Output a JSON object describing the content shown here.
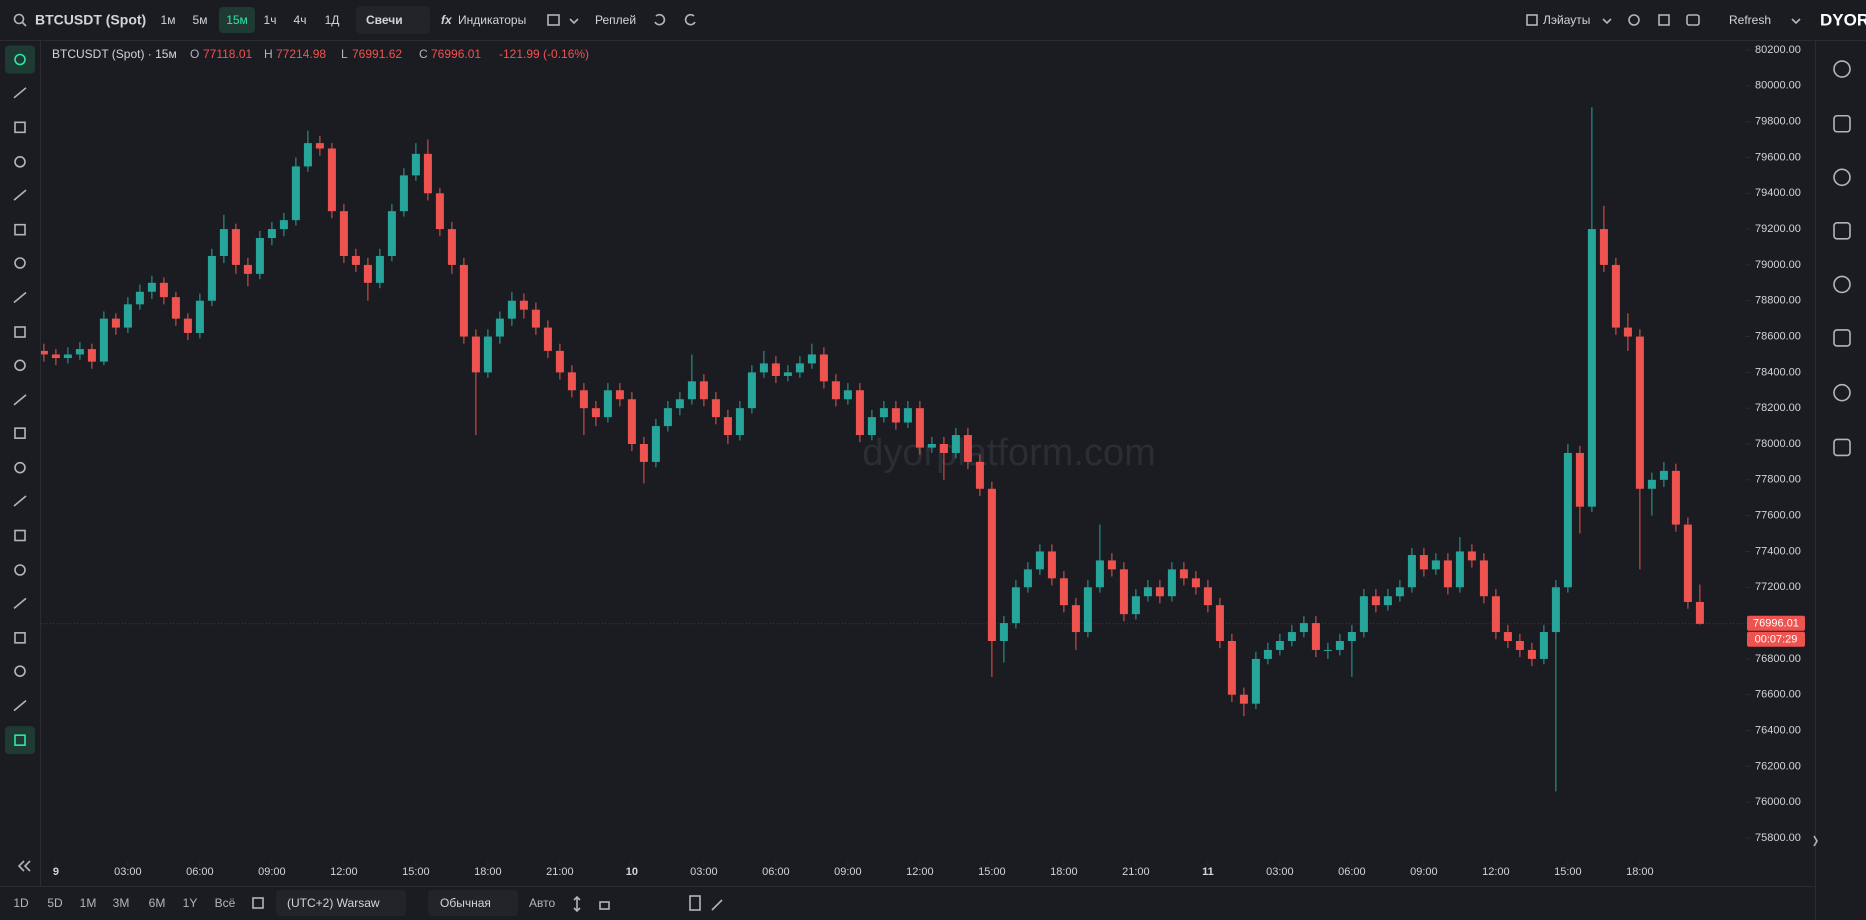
{
  "toolbar": {
    "symbol": "BTCUSDT (Spot)",
    "intervals": [
      "1м",
      "5м",
      "15м",
      "1ч",
      "4ч",
      "1Д"
    ],
    "active_interval": 2,
    "chart_style": "Свечи",
    "indicators": "Индикаторы",
    "replay": "Реплей",
    "layouts": "Лэйауты",
    "refresh": "Refresh",
    "logo": "DYOR"
  },
  "chart_data": {
    "type": "candlestick",
    "title": "BTCUSDT (Spot) · 15м",
    "ohlc_labels": [
      "O",
      "H",
      "L",
      "C"
    ],
    "change_label": "-121.99 (-0.16%)",
    "watermark": "dyorplatform.com",
    "countdown": "00:07:29",
    "up_color": "#26a69a",
    "down_color": "#ef5350",
    "ylim": [
      75800,
      80200
    ],
    "yticks": [
      {
        "value": 75800,
        "label": "75800.00"
      },
      {
        "value": 76000,
        "label": "76000.00"
      },
      {
        "value": 76200,
        "label": "76200.00"
      },
      {
        "value": 76400,
        "label": "76400.00"
      },
      {
        "value": 76600,
        "label": "76600.00"
      },
      {
        "value": 76800,
        "label": "76800.00"
      },
      {
        "value": 77000,
        "label": "77000.00"
      },
      {
        "value": 77200,
        "label": "77200.00"
      },
      {
        "value": 77400,
        "label": "77400.00"
      },
      {
        "value": 77600,
        "label": "77600.00"
      },
      {
        "value": 77800,
        "label": "77800.00"
      },
      {
        "value": 78000,
        "label": "78000.00"
      },
      {
        "value": 78200,
        "label": "78200.00"
      },
      {
        "value": 78400,
        "label": "78400.00"
      },
      {
        "value": 78600,
        "label": "78600.00"
      },
      {
        "value": 78800,
        "label": "78800.00"
      },
      {
        "value": 79000,
        "label": "79000.00"
      },
      {
        "value": 79200,
        "label": "79200.00"
      },
      {
        "value": 79400,
        "label": "79400.00"
      },
      {
        "value": 79600,
        "label": "79600.00"
      },
      {
        "value": 79800,
        "label": "79800.00"
      },
      {
        "value": 80000,
        "label": "80000.00"
      },
      {
        "value": 80200,
        "label": "80200.00"
      }
    ],
    "xticks": [
      {
        "value": 2,
        "label": "9"
      },
      {
        "value": 8,
        "label": "03:00"
      },
      {
        "value": 14,
        "label": "06:00"
      },
      {
        "value": 20,
        "label": "09:00"
      },
      {
        "value": 26,
        "label": "12:00"
      },
      {
        "value": 32,
        "label": "15:00"
      },
      {
        "value": 38,
        "label": "18:00"
      },
      {
        "value": 44,
        "label": "21:00"
      },
      {
        "value": 50,
        "label": "10"
      },
      {
        "value": 56,
        "label": "03:00"
      },
      {
        "value": 62,
        "label": "06:00"
      },
      {
        "value": 68,
        "label": "09:00"
      },
      {
        "value": 74,
        "label": "12:00"
      },
      {
        "value": 80,
        "label": "15:00"
      },
      {
        "value": 86,
        "label": "18:00"
      },
      {
        "value": 92,
        "label": "21:00"
      },
      {
        "value": 98,
        "label": "11"
      },
      {
        "value": 104,
        "label": "03:00"
      },
      {
        "value": 110,
        "label": "06:00"
      },
      {
        "value": 116,
        "label": "09:00"
      },
      {
        "value": 122,
        "label": "12:00"
      },
      {
        "value": 128,
        "label": "15:00"
      },
      {
        "value": 134,
        "label": "18:00"
      }
    ],
    "candles": [
      [
        78500,
        78560,
        78460,
        78520
      ],
      [
        78520,
        78560,
        78460,
        78500
      ],
      [
        78500,
        78530,
        78440,
        78480
      ],
      [
        78480,
        78540,
        78450,
        78500
      ],
      [
        78500,
        78570,
        78470,
        78530
      ],
      [
        78530,
        78560,
        78420,
        78460
      ],
      [
        78460,
        78740,
        78440,
        78700
      ],
      [
        78700,
        78730,
        78610,
        78650
      ],
      [
        78650,
        78820,
        78620,
        78780
      ],
      [
        78780,
        78890,
        78750,
        78850
      ],
      [
        78850,
        78940,
        78810,
        78900
      ],
      [
        78900,
        78930,
        78780,
        78820
      ],
      [
        78820,
        78850,
        78660,
        78700
      ],
      [
        78700,
        78730,
        78580,
        78620
      ],
      [
        78620,
        78840,
        78590,
        78800
      ],
      [
        78800,
        79090,
        78770,
        79050
      ],
      [
        79050,
        79280,
        79010,
        79200
      ],
      [
        79200,
        79230,
        78950,
        79000
      ],
      [
        79000,
        79040,
        78880,
        78950
      ],
      [
        78950,
        79190,
        78920,
        79150
      ],
      [
        79150,
        79240,
        79110,
        79200
      ],
      [
        79200,
        79290,
        79160,
        79250
      ],
      [
        79250,
        79600,
        79220,
        79550
      ],
      [
        79550,
        79750,
        79520,
        79680
      ],
      [
        79680,
        79720,
        79610,
        79650
      ],
      [
        79650,
        79680,
        79260,
        79300
      ],
      [
        79300,
        79340,
        79010,
        79050
      ],
      [
        79050,
        79090,
        78960,
        79000
      ],
      [
        79000,
        79040,
        78800,
        78900
      ],
      [
        78900,
        79090,
        78870,
        79050
      ],
      [
        79050,
        79340,
        79020,
        79300
      ],
      [
        79300,
        79540,
        79270,
        79500
      ],
      [
        79500,
        79680,
        79470,
        79620
      ],
      [
        79620,
        79700,
        79360,
        79400
      ],
      [
        79400,
        79430,
        79160,
        79200
      ],
      [
        79200,
        79240,
        78950,
        79000
      ],
      [
        79000,
        79040,
        78560,
        78600
      ],
      [
        78600,
        78640,
        78050,
        78400
      ],
      [
        78400,
        78640,
        78370,
        78600
      ],
      [
        78600,
        78740,
        78560,
        78700
      ],
      [
        78700,
        78850,
        78660,
        78800
      ],
      [
        78800,
        78840,
        78700,
        78750
      ],
      [
        78750,
        78790,
        78610,
        78650
      ],
      [
        78650,
        78690,
        78480,
        78520
      ],
      [
        78520,
        78560,
        78360,
        78400
      ],
      [
        78400,
        78440,
        78260,
        78300
      ],
      [
        78300,
        78340,
        78050,
        78200
      ],
      [
        78200,
        78240,
        78100,
        78150
      ],
      [
        78150,
        78340,
        78120,
        78300
      ],
      [
        78300,
        78340,
        78210,
        78250
      ],
      [
        78250,
        78290,
        77960,
        78000
      ],
      [
        78000,
        78040,
        77780,
        77900
      ],
      [
        77900,
        78140,
        77870,
        78100
      ],
      [
        78100,
        78240,
        78070,
        78200
      ],
      [
        78200,
        78290,
        78160,
        78250
      ],
      [
        78250,
        78500,
        78220,
        78350
      ],
      [
        78350,
        78390,
        78210,
        78250
      ],
      [
        78250,
        78290,
        78110,
        78150
      ],
      [
        78150,
        78190,
        78000,
        78050
      ],
      [
        78050,
        78240,
        78020,
        78200
      ],
      [
        78200,
        78440,
        78170,
        78400
      ],
      [
        78400,
        78520,
        78370,
        78450
      ],
      [
        78450,
        78490,
        78340,
        78380
      ],
      [
        78380,
        78440,
        78350,
        78400
      ],
      [
        78400,
        78490,
        78370,
        78450
      ],
      [
        78450,
        78560,
        78420,
        78500
      ],
      [
        78500,
        78540,
        78310,
        78350
      ],
      [
        78350,
        78390,
        78210,
        78250
      ],
      [
        78250,
        78340,
        78220,
        78300
      ],
      [
        78300,
        78340,
        78010,
        78050
      ],
      [
        78050,
        78190,
        78020,
        78150
      ],
      [
        78150,
        78240,
        78120,
        78200
      ],
      [
        78200,
        78240,
        78080,
        78120
      ],
      [
        78120,
        78240,
        78090,
        78200
      ],
      [
        78200,
        78240,
        77940,
        77980
      ],
      [
        77980,
        78040,
        77950,
        78000
      ],
      [
        78000,
        78040,
        77800,
        77950
      ],
      [
        77950,
        78090,
        77920,
        78050
      ],
      [
        78050,
        78090,
        77860,
        77900
      ],
      [
        77900,
        77940,
        77710,
        77750
      ],
      [
        77750,
        77790,
        76700,
        76900
      ],
      [
        76900,
        77040,
        76780,
        77000
      ],
      [
        77000,
        77240,
        76970,
        77200
      ],
      [
        77200,
        77340,
        77170,
        77300
      ],
      [
        77300,
        77440,
        77270,
        77400
      ],
      [
        77400,
        77440,
        77210,
        77250
      ],
      [
        77250,
        77290,
        77060,
        77100
      ],
      [
        77100,
        77140,
        76850,
        76950
      ],
      [
        76950,
        77240,
        76920,
        77200
      ],
      [
        77200,
        77550,
        77170,
        77350
      ],
      [
        77350,
        77390,
        77260,
        77300
      ],
      [
        77300,
        77340,
        77010,
        77050
      ],
      [
        77050,
        77190,
        77020,
        77150
      ],
      [
        77150,
        77240,
        77120,
        77200
      ],
      [
        77200,
        77240,
        77110,
        77150
      ],
      [
        77150,
        77340,
        77120,
        77300
      ],
      [
        77300,
        77340,
        77210,
        77250
      ],
      [
        77250,
        77290,
        77160,
        77200
      ],
      [
        77200,
        77240,
        77060,
        77100
      ],
      [
        77100,
        77140,
        76860,
        76900
      ],
      [
        76900,
        76940,
        76560,
        76600
      ],
      [
        76600,
        76640,
        76480,
        76550
      ],
      [
        76550,
        76840,
        76520,
        76800
      ],
      [
        76800,
        76890,
        76770,
        76850
      ],
      [
        76850,
        76940,
        76820,
        76900
      ],
      [
        76900,
        76990,
        76870,
        76950
      ],
      [
        76950,
        77040,
        76920,
        77000
      ],
      [
        77000,
        77040,
        76810,
        76850
      ],
      [
        76850,
        76890,
        76800,
        76850
      ],
      [
        76850,
        76940,
        76820,
        76900
      ],
      [
        76900,
        76990,
        76700,
        76950
      ],
      [
        76950,
        77190,
        76920,
        77150
      ],
      [
        77150,
        77190,
        77060,
        77100
      ],
      [
        77100,
        77190,
        77070,
        77150
      ],
      [
        77150,
        77240,
        77120,
        77200
      ],
      [
        77200,
        77420,
        77170,
        77380
      ],
      [
        77380,
        77420,
        77260,
        77300
      ],
      [
        77300,
        77390,
        77270,
        77350
      ],
      [
        77350,
        77390,
        77160,
        77200
      ],
      [
        77200,
        77480,
        77170,
        77400
      ],
      [
        77400,
        77440,
        77310,
        77350
      ],
      [
        77350,
        77390,
        77110,
        77150
      ],
      [
        77150,
        77190,
        76910,
        76950
      ],
      [
        76950,
        76990,
        76860,
        76900
      ],
      [
        76900,
        76940,
        76810,
        76850
      ],
      [
        76850,
        76890,
        76760,
        76800
      ],
      [
        76800,
        76990,
        76770,
        76950
      ],
      [
        76950,
        77240,
        76060,
        77200
      ],
      [
        77200,
        78000,
        77170,
        77950
      ],
      [
        77950,
        77990,
        77500,
        77650
      ],
      [
        77650,
        79880,
        77620,
        79200
      ],
      [
        79200,
        79330,
        78960,
        79000
      ],
      [
        79000,
        79040,
        78610,
        78650
      ],
      [
        78650,
        78730,
        78520,
        78600
      ],
      [
        78600,
        78640,
        77300,
        77750
      ],
      [
        77750,
        77840,
        77600,
        77800
      ],
      [
        77800,
        77900,
        77760,
        77850
      ],
      [
        77850,
        77890,
        77510,
        77550
      ],
      [
        77550,
        77590,
        77080,
        77118.01
      ],
      [
        77118.01,
        77214.98,
        76991.62,
        76996.01
      ]
    ]
  },
  "bottom_bar": {
    "ranges": [
      "1D",
      "5D",
      "1M",
      "3M",
      "6M",
      "1Y",
      "Всё"
    ],
    "timezone": "(UTC+2) Warsaw",
    "scale_mode": "Обычная",
    "auto": "Авто"
  }
}
